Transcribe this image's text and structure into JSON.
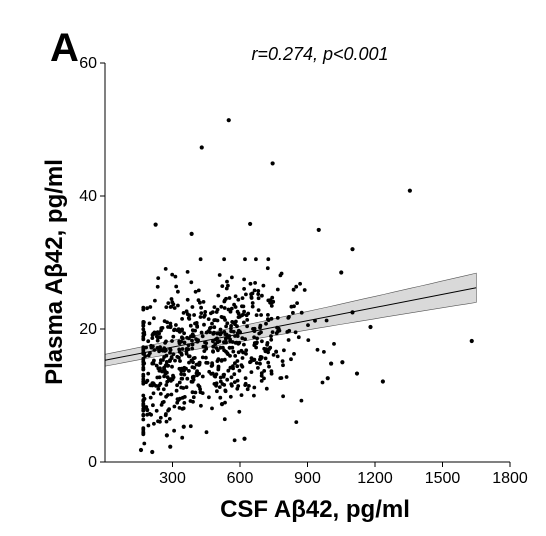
{
  "panel_label": "A",
  "chart_data": {
    "type": "scatter",
    "title": "",
    "annotation": "r=0.274, p<0.001",
    "xlabel": "CSF Aβ42, pg/ml",
    "ylabel": "Plasma Aβ42, pg/ml",
    "xlim": [
      0,
      1800
    ],
    "ylim": [
      0,
      60
    ],
    "xticks": [
      300,
      600,
      900,
      1200,
      1500,
      1800
    ],
    "yticks": [
      0,
      20,
      40,
      60
    ],
    "grid": false,
    "colors": {
      "points": "#000000",
      "band": "#d9d9d9",
      "line": "#000000"
    },
    "regression": {
      "x": [
        0,
        1650
      ],
      "y": [
        15.3,
        26.2
      ],
      "ci_halfwidth": [
        0.9,
        2.2
      ]
    },
    "n_cluster_points": 700,
    "outliers": [
      {
        "x": 550,
        "y": 51.4
      },
      {
        "x": 430,
        "y": 47.3
      },
      {
        "x": 745,
        "y": 44.9
      },
      {
        "x": 1355,
        "y": 40.8
      },
      {
        "x": 1630,
        "y": 18.2
      },
      {
        "x": 1235,
        "y": 12.1
      },
      {
        "x": 620,
        "y": 3.5
      },
      {
        "x": 160,
        "y": 1.8
      },
      {
        "x": 210,
        "y": 1.5
      },
      {
        "x": 175,
        "y": 9.5
      },
      {
        "x": 1180,
        "y": 20.3
      },
      {
        "x": 1100,
        "y": 22.5
      },
      {
        "x": 1100,
        "y": 32
      },
      {
        "x": 225,
        "y": 35.7
      },
      {
        "x": 645,
        "y": 35.8
      },
      {
        "x": 385,
        "y": 34.3
      },
      {
        "x": 950,
        "y": 34.9
      },
      {
        "x": 1050,
        "y": 28.5
      },
      {
        "x": 1055,
        "y": 15
      },
      {
        "x": 1120,
        "y": 13.3
      },
      {
        "x": 350,
        "y": 5.3
      },
      {
        "x": 275,
        "y": 4
      },
      {
        "x": 290,
        "y": 2.3
      },
      {
        "x": 520,
        "y": 8.7
      },
      {
        "x": 990,
        "y": 12.6
      },
      {
        "x": 1005,
        "y": 14.8
      }
    ]
  }
}
